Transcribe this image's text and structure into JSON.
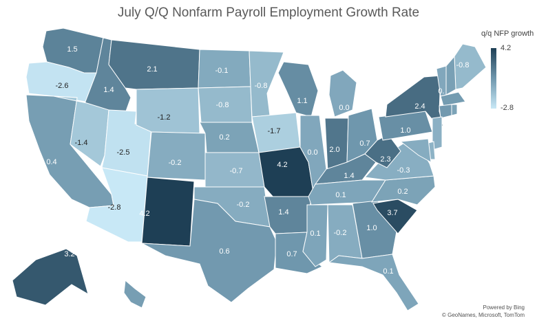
{
  "title": "July Q/Q Nonfarm Payroll Employment Growth Rate",
  "legend": {
    "title": "q/q NFP growth",
    "max_label": "4.2",
    "min_label": "-2.8",
    "color_max": "#1e3f55",
    "color_mid": "#6f97ad",
    "color_min": "#c8e8f6"
  },
  "credits": {
    "line1": "Powered by Bing",
    "line2": "© GeoNames, Microsoft, TomTom"
  },
  "chart_data": {
    "type": "choropleth",
    "value_range": [
      -2.8,
      4.2
    ],
    "states": [
      {
        "state": "WA",
        "value": 1.5,
        "label": "1.5"
      },
      {
        "state": "OR",
        "value": -2.6,
        "label": "-2.6"
      },
      {
        "state": "CA",
        "value": 0.4,
        "label": "0.4"
      },
      {
        "state": "ID",
        "value": 1.4,
        "label": "1.4"
      },
      {
        "state": "NV",
        "value": -1.4,
        "label": "-1.4"
      },
      {
        "state": "UT",
        "value": -2.5,
        "label": "-2.5"
      },
      {
        "state": "AZ",
        "value": -2.8,
        "label": "-2.8"
      },
      {
        "state": "MT",
        "value": 2.1,
        "label": "2.1"
      },
      {
        "state": "WY",
        "value": -1.2,
        "label": "-1.2"
      },
      {
        "state": "CO",
        "value": -0.2,
        "label": "-0.2"
      },
      {
        "state": "NM",
        "value": 4.2,
        "label": "4.2"
      },
      {
        "state": "ND",
        "value": -0.1,
        "label": "-0.1"
      },
      {
        "state": "SD",
        "value": -0.8,
        "label": "-0.8"
      },
      {
        "state": "NE",
        "value": 0.2,
        "label": "0.2"
      },
      {
        "state": "KS",
        "value": -0.7,
        "label": "-0.7"
      },
      {
        "state": "OK",
        "value": -0.2,
        "label": "-0.2"
      },
      {
        "state": "TX",
        "value": 0.6,
        "label": "0.6"
      },
      {
        "state": "MN",
        "value": -0.8,
        "label": "-0.8"
      },
      {
        "state": "IA",
        "value": -1.7,
        "label": "-1.7"
      },
      {
        "state": "MO",
        "value": 4.2,
        "label": "4.2"
      },
      {
        "state": "AR",
        "value": 1.4,
        "label": "1.4"
      },
      {
        "state": "LA",
        "value": 0.7,
        "label": "0.7"
      },
      {
        "state": "WI",
        "value": 1.1,
        "label": "1.1"
      },
      {
        "state": "IL",
        "value": 0.0,
        "label": "0.0"
      },
      {
        "state": "MI",
        "value": 0.0,
        "label": "0.0"
      },
      {
        "state": "IN",
        "value": 2.0,
        "label": "2.0"
      },
      {
        "state": "OH",
        "value": 0.7,
        "label": "0.7"
      },
      {
        "state": "KY",
        "value": 1.4,
        "label": "1.4"
      },
      {
        "state": "TN",
        "value": 0.1,
        "label": "0.1"
      },
      {
        "state": "MS",
        "value": 0.1,
        "label": "0.1"
      },
      {
        "state": "AL",
        "value": -0.2,
        "label": "-0.2"
      },
      {
        "state": "GA",
        "value": 1.0,
        "label": "1.0"
      },
      {
        "state": "FL",
        "value": 0.1,
        "label": "0.1"
      },
      {
        "state": "SC",
        "value": 3.7,
        "label": "3.7"
      },
      {
        "state": "NC",
        "value": 0.2,
        "label": "0.2"
      },
      {
        "state": "VA",
        "value": -0.3,
        "label": "-0.3"
      },
      {
        "state": "WV",
        "value": 2.3,
        "label": "2.3"
      },
      {
        "state": "PA",
        "value": 1.0,
        "label": "1.0"
      },
      {
        "state": "NY",
        "value": 2.4,
        "label": "2.4"
      },
      {
        "state": "VT",
        "value": 0.0,
        "label": "0."
      },
      {
        "state": "ME",
        "value": -0.8,
        "label": "-0.8"
      },
      {
        "state": "AK",
        "value": 3.2,
        "label": "3.2"
      },
      {
        "state": "HI",
        "value": 0.4,
        "label": ""
      },
      {
        "state": "NH",
        "value": 0.3,
        "label": ""
      },
      {
        "state": "MA",
        "value": 0.5,
        "label": ""
      },
      {
        "state": "CT",
        "value": 0.6,
        "label": ""
      },
      {
        "state": "RI",
        "value": 0.2,
        "label": ""
      },
      {
        "state": "NJ",
        "value": -0.4,
        "label": ""
      },
      {
        "state": "DE",
        "value": -0.5,
        "label": ""
      },
      {
        "state": "MD",
        "value": -0.2,
        "label": ""
      }
    ]
  }
}
